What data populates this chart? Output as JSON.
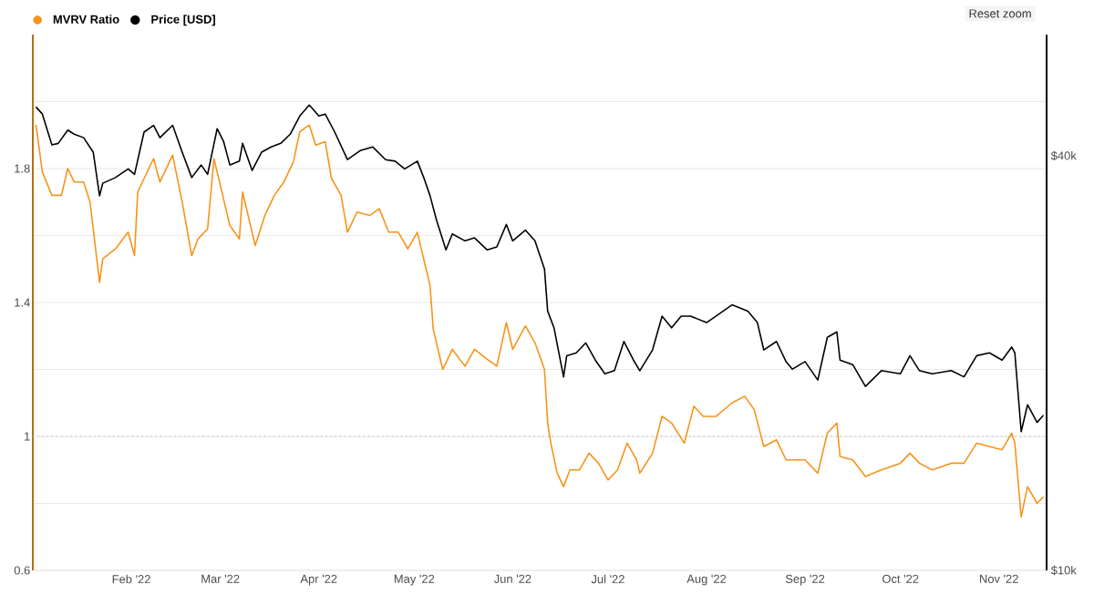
{
  "chart_data": {
    "type": "line",
    "xlim": [
      "2022-01-01",
      "2022-11-16"
    ],
    "xticks": [
      {
        "value": "2022-02-01",
        "label": "Feb '22"
      },
      {
        "value": "2022-03-01",
        "label": "Mar '22"
      },
      {
        "value": "2022-04-01",
        "label": "Apr '22"
      },
      {
        "value": "2022-05-01",
        "label": "May '22"
      },
      {
        "value": "2022-06-01",
        "label": "Jun '22"
      },
      {
        "value": "2022-07-01",
        "label": "Jul '22"
      },
      {
        "value": "2022-08-01",
        "label": "Aug '22"
      },
      {
        "value": "2022-09-01",
        "label": "Sep '22"
      },
      {
        "value": "2022-10-01",
        "label": "Oct '22"
      },
      {
        "value": "2022-11-01",
        "label": "Nov '22"
      }
    ],
    "ylim": [
      0.6,
      2.2
    ],
    "yticks": [
      0.6,
      {
        "value": 0.8,
        "label": null
      },
      1,
      {
        "value": 1.2,
        "label": null
      },
      1.4,
      {
        "value": 1.6,
        "label": null
      },
      1.8,
      {
        "value": 2.0,
        "label": null
      }
    ],
    "y2lim": [
      10000,
      60000
    ],
    "y2ticks": [
      {
        "value": 10000,
        "label": "$10k"
      },
      {
        "value": 40000,
        "label": "$40k"
      }
    ],
    "log": "y2",
    "grid": "y",
    "legend": "top left",
    "ref_lines": [
      {
        "axis": "y",
        "value": 1,
        "color": "#aaaaaa",
        "line_style": "dotted"
      }
    ],
    "annotations": [
      "Reset zoom"
    ],
    "series": [
      {
        "name": "MVRV Ratio",
        "color": "#f7931a",
        "line_style": "solid",
        "x": [
          "2022-01-02",
          "2022-01-04",
          "2022-01-07",
          "2022-01-10",
          "2022-01-12",
          "2022-01-14",
          "2022-01-17",
          "2022-01-19",
          "2022-01-22",
          "2022-01-23",
          "2022-01-27",
          "2022-01-31",
          "2022-02-02",
          "2022-02-03",
          "2022-02-08",
          "2022-02-10",
          "2022-02-14",
          "2022-02-17",
          "2022-02-20",
          "2022-02-22",
          "2022-02-25",
          "2022-02-27",
          "2022-03-01",
          "2022-03-04",
          "2022-03-07",
          "2022-03-08",
          "2022-03-12",
          "2022-03-15",
          "2022-03-18",
          "2022-03-21",
          "2022-03-24",
          "2022-03-26",
          "2022-03-29",
          "2022-03-31",
          "2022-04-03",
          "2022-04-05",
          "2022-04-08",
          "2022-04-10",
          "2022-04-13",
          "2022-04-17",
          "2022-04-20",
          "2022-04-23",
          "2022-04-26",
          "2022-04-29",
          "2022-05-02",
          "2022-05-04",
          "2022-05-06",
          "2022-05-07",
          "2022-05-10",
          "2022-05-13",
          "2022-05-17",
          "2022-05-20",
          "2022-05-24",
          "2022-05-27",
          "2022-05-30",
          "2022-06-01",
          "2022-06-05",
          "2022-06-08",
          "2022-06-11",
          "2022-06-12",
          "2022-06-13",
          "2022-06-15",
          "2022-06-17",
          "2022-06-19",
          "2022-06-22",
          "2022-06-25",
          "2022-06-28",
          "2022-07-01",
          "2022-07-04",
          "2022-07-07",
          "2022-07-10",
          "2022-07-11",
          "2022-07-15",
          "2022-07-18",
          "2022-07-21",
          "2022-07-25",
          "2022-07-28",
          "2022-07-31",
          "2022-08-04",
          "2022-08-09",
          "2022-08-13",
          "2022-08-16",
          "2022-08-19",
          "2022-08-23",
          "2022-08-26",
          "2022-08-29",
          "2022-09-01",
          "2022-09-05",
          "2022-09-08",
          "2022-09-11",
          "2022-09-12",
          "2022-09-16",
          "2022-09-20",
          "2022-09-25",
          "2022-10-01",
          "2022-10-04",
          "2022-10-07",
          "2022-10-11",
          "2022-10-17",
          "2022-10-21",
          "2022-10-25",
          "2022-10-29",
          "2022-11-02",
          "2022-11-05",
          "2022-11-06",
          "2022-11-08",
          "2022-11-10",
          "2022-11-13",
          "2022-11-15"
        ],
        "values": [
          1.93,
          1.79,
          1.72,
          1.72,
          1.8,
          1.76,
          1.76,
          1.7,
          1.46,
          1.53,
          1.56,
          1.61,
          1.54,
          1.73,
          1.83,
          1.76,
          1.84,
          1.7,
          1.54,
          1.59,
          1.62,
          1.83,
          1.75,
          1.63,
          1.59,
          1.73,
          1.57,
          1.66,
          1.72,
          1.76,
          1.82,
          1.91,
          1.93,
          1.87,
          1.88,
          1.77,
          1.72,
          1.61,
          1.67,
          1.66,
          1.68,
          1.61,
          1.61,
          1.56,
          1.61,
          1.53,
          1.45,
          1.32,
          1.2,
          1.26,
          1.21,
          1.26,
          1.23,
          1.21,
          1.34,
          1.26,
          1.33,
          1.28,
          1.2,
          1.04,
          0.98,
          0.89,
          0.85,
          0.9,
          0.9,
          0.95,
          0.92,
          0.87,
          0.9,
          0.98,
          0.93,
          0.89,
          0.95,
          1.06,
          1.04,
          0.98,
          1.09,
          1.06,
          1.06,
          1.1,
          1.12,
          1.08,
          0.97,
          0.99,
          0.93,
          0.93,
          0.93,
          0.89,
          1.01,
          1.04,
          0.94,
          0.93,
          0.88,
          0.9,
          0.92,
          0.95,
          0.92,
          0.9,
          0.92,
          0.92,
          0.98,
          0.97,
          0.96,
          1.01,
          0.98,
          0.76,
          0.85,
          0.8,
          0.82
        ]
      },
      {
        "name": "Price [USD]",
        "color": "#000000",
        "line_style": "solid",
        "axis": "y2",
        "x": [
          "2022-01-02",
          "2022-01-04",
          "2022-01-07",
          "2022-01-09",
          "2022-01-12",
          "2022-01-14",
          "2022-01-17",
          "2022-01-20",
          "2022-01-22",
          "2022-01-23",
          "2022-01-27",
          "2022-01-31",
          "2022-02-02",
          "2022-02-05",
          "2022-02-08",
          "2022-02-10",
          "2022-02-14",
          "2022-02-17",
          "2022-02-20",
          "2022-02-23",
          "2022-02-25",
          "2022-02-28",
          "2022-03-02",
          "2022-03-04",
          "2022-03-07",
          "2022-03-08",
          "2022-03-11",
          "2022-03-14",
          "2022-03-17",
          "2022-03-20",
          "2022-03-23",
          "2022-03-26",
          "2022-03-29",
          "2022-04-01",
          "2022-04-03",
          "2022-04-06",
          "2022-04-10",
          "2022-04-14",
          "2022-04-18",
          "2022-04-22",
          "2022-04-25",
          "2022-04-28",
          "2022-05-02",
          "2022-05-04",
          "2022-05-06",
          "2022-05-08",
          "2022-05-11",
          "2022-05-13",
          "2022-05-17",
          "2022-05-20",
          "2022-05-24",
          "2022-05-27",
          "2022-05-30",
          "2022-06-01",
          "2022-06-05",
          "2022-06-08",
          "2022-06-11",
          "2022-06-12",
          "2022-06-14",
          "2022-06-17",
          "2022-06-18",
          "2022-06-21",
          "2022-06-24",
          "2022-06-27",
          "2022-06-30",
          "2022-07-03",
          "2022-07-06",
          "2022-07-09",
          "2022-07-11",
          "2022-07-15",
          "2022-07-18",
          "2022-07-21",
          "2022-07-24",
          "2022-07-27",
          "2022-08-01",
          "2022-08-04",
          "2022-08-09",
          "2022-08-14",
          "2022-08-17",
          "2022-08-19",
          "2022-08-23",
          "2022-08-26",
          "2022-08-28",
          "2022-09-01",
          "2022-09-05",
          "2022-09-08",
          "2022-09-11",
          "2022-09-12",
          "2022-09-16",
          "2022-09-20",
          "2022-09-25",
          "2022-10-01",
          "2022-10-04",
          "2022-10-07",
          "2022-10-11",
          "2022-10-17",
          "2022-10-21",
          "2022-10-25",
          "2022-10-29",
          "2022-11-02",
          "2022-11-05",
          "2022-11-06",
          "2022-11-08",
          "2022-11-10",
          "2022-11-13",
          "2022-11-15"
        ],
        "values": [
          47100,
          46000,
          41500,
          41700,
          43600,
          43000,
          42500,
          40500,
          35000,
          36500,
          37200,
          38300,
          37600,
          43300,
          44300,
          42500,
          44300,
          40500,
          37200,
          38800,
          37600,
          43800,
          42000,
          38800,
          39300,
          41700,
          38100,
          40500,
          41200,
          41700,
          43000,
          45700,
          47400,
          45700,
          46000,
          43300,
          39500,
          40700,
          41200,
          39500,
          39300,
          38300,
          39300,
          37200,
          35000,
          32300,
          29200,
          30800,
          30100,
          30400,
          29200,
          29500,
          31800,
          30100,
          31200,
          30100,
          27400,
          23800,
          22500,
          19100,
          20500,
          20700,
          21400,
          20200,
          19300,
          19500,
          21500,
          20200,
          19500,
          20900,
          23400,
          22500,
          23400,
          23400,
          22900,
          23400,
          24300,
          23800,
          22900,
          20900,
          21500,
          20100,
          19600,
          20100,
          18900,
          21800,
          22200,
          20200,
          19900,
          18500,
          19500,
          19300,
          20500,
          19500,
          19300,
          19500,
          19100,
          20500,
          20700,
          20200,
          21100,
          20700,
          15900,
          17400,
          16400,
          16800
        ]
      }
    ]
  }
}
